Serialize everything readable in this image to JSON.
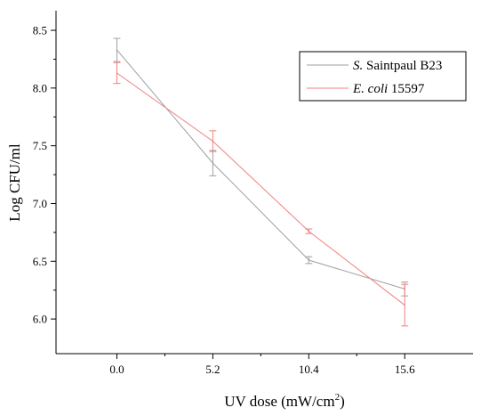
{
  "chart_data": {
    "type": "line",
    "xlabel": "UV dose (mW/cm",
    "xlabel_sup": "2",
    "xlabel_end": ")",
    "ylabel": "Log CFU/ml",
    "x": [
      0.0,
      5.2,
      10.4,
      15.6
    ],
    "x_tick_labels": [
      "0.0",
      "5.2",
      "10.4",
      "15.6"
    ],
    "y_ticks": [
      6.0,
      6.5,
      7.0,
      7.5,
      8.0,
      8.5
    ],
    "y_tick_labels": [
      "6.0",
      "6.5",
      "7.0",
      "7.5",
      "8.0",
      "8.5"
    ],
    "xlim": [
      -3.3,
      19.3
    ],
    "ylim": [
      5.7,
      8.67
    ],
    "grid": false,
    "legend_position": "top-right",
    "series": [
      {
        "name": "Saintpaul B23",
        "name_italic_prefix": "S.",
        "color": "#a0a0a0",
        "values": [
          8.33,
          7.35,
          6.51,
          6.26
        ],
        "errors": [
          0.1,
          0.11,
          0.03,
          0.06
        ]
      },
      {
        "name": "15597",
        "name_italic_prefix": "E. coli",
        "color": "#f08080",
        "values": [
          8.13,
          7.54,
          6.76,
          6.12
        ],
        "errors": [
          0.09,
          0.09,
          0.02,
          0.18
        ]
      }
    ]
  }
}
